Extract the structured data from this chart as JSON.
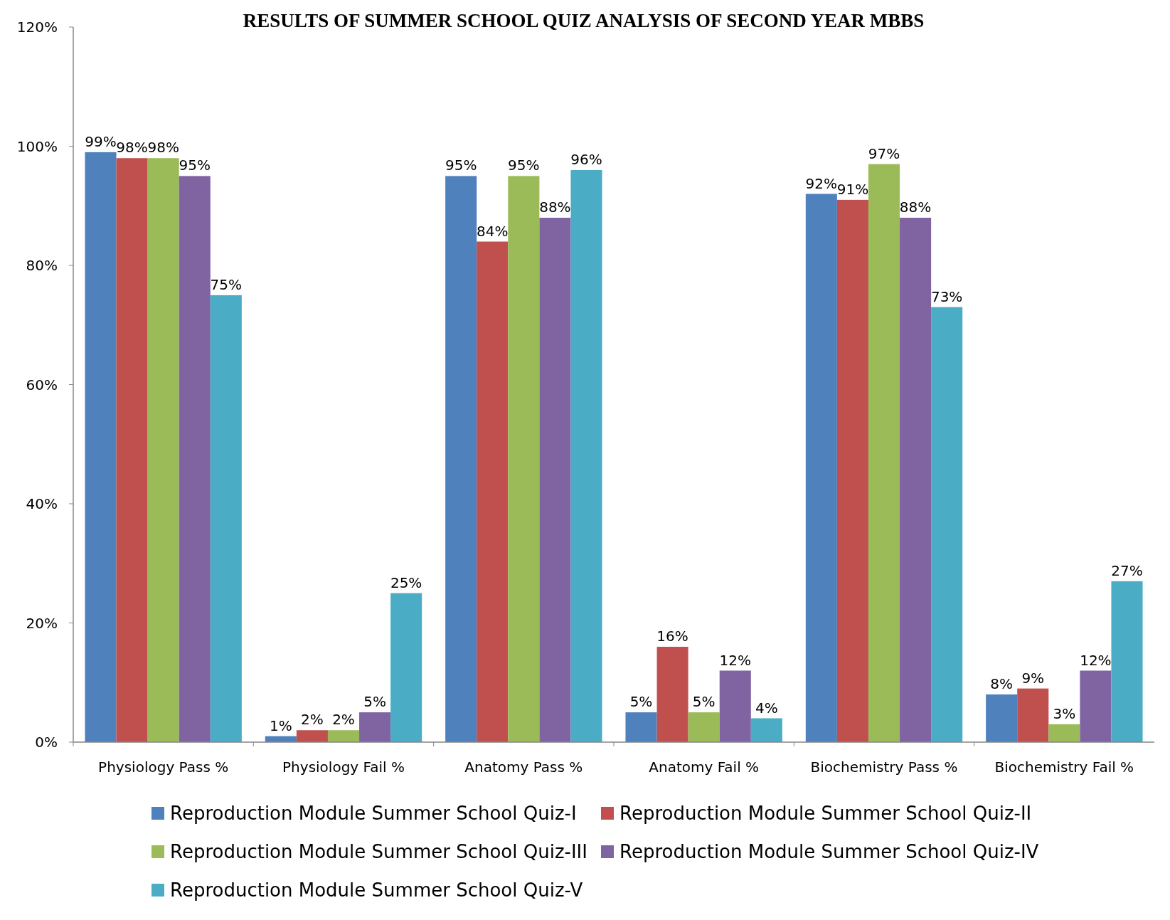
{
  "chart_data": {
    "type": "bar",
    "title": "RESULTS OF SUMMER SCHOOL QUIZ ANALYSIS OF SECOND YEAR MBBS",
    "categories": [
      "Physiology Pass %",
      "Physiology Fail %",
      "Anatomy Pass %",
      "Anatomy Fail %",
      "Biochemistry Pass %",
      "Biochemistry Fail %"
    ],
    "series": [
      {
        "name": "Reproduction Module Summer School Quiz-I",
        "color": "#4f81bd",
        "values": [
          99,
          1,
          95,
          5,
          92,
          8
        ],
        "value_labels": [
          "99%",
          "1%",
          "95%",
          "5%",
          "92%",
          "8%"
        ]
      },
      {
        "name": "Reproduction Module Summer School Quiz-II",
        "color": "#c0504d",
        "values": [
          98,
          2,
          84,
          16,
          91,
          9
        ],
        "value_labels": [
          "98%",
          "2%",
          "84%",
          "16%",
          "91%",
          "9%"
        ]
      },
      {
        "name": "Reproduction Module Summer School Quiz-III",
        "color": "#9bbb59",
        "values": [
          98,
          2,
          95,
          5,
          97,
          3
        ],
        "value_labels": [
          "98%",
          "2%",
          "95%",
          "5%",
          "97%",
          "3%"
        ]
      },
      {
        "name": "Reproduction Module Summer School Quiz-IV",
        "color": "#8064a2",
        "values": [
          95,
          5,
          88,
          12,
          88,
          12
        ],
        "value_labels": [
          "95%",
          "5%",
          "88%",
          "12%",
          "88%",
          "12%"
        ]
      },
      {
        "name": "Reproduction Module Summer School Quiz-V",
        "color": "#4bacc6",
        "values": [
          75,
          25,
          96,
          4,
          73,
          27
        ],
        "value_labels": [
          "75%",
          "25%",
          "96%",
          "4%",
          "73%",
          "27%"
        ]
      }
    ],
    "ylim": [
      0,
      120
    ],
    "yticks": [
      {
        "value": 0,
        "label": "0%"
      },
      {
        "value": 20,
        "label": "20%"
      },
      {
        "value": 40,
        "label": "40%"
      },
      {
        "value": 60,
        "label": "60%"
      },
      {
        "value": 80,
        "label": "80%"
      },
      {
        "value": 100,
        "label": "100%"
      },
      {
        "value": 120,
        "label": "120%"
      }
    ],
    "legend": "bottom",
    "grid": false
  }
}
